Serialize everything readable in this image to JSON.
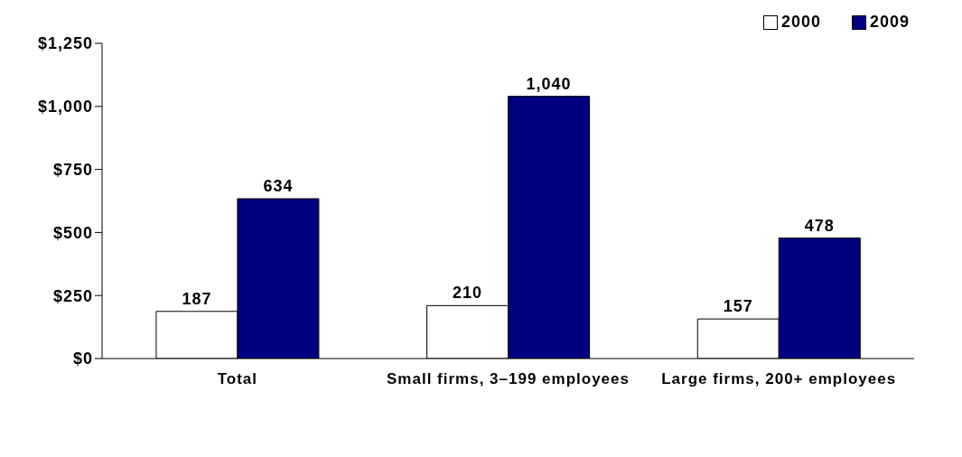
{
  "chart_data": {
    "type": "bar",
    "categories": [
      "Total",
      "Small firms, 3–199 employees",
      "Large firms, 200+ employees"
    ],
    "series": [
      {
        "name": "2000",
        "color": "#ffffff",
        "values": [
          187,
          210,
          157
        ],
        "value_labels": [
          "187",
          "210",
          "157"
        ]
      },
      {
        "name": "2009",
        "color": "#000080",
        "values": [
          634,
          1040,
          478
        ],
        "value_labels": [
          "634",
          "1,040",
          "478"
        ]
      }
    ],
    "ylim": [
      0,
      1250
    ],
    "yticks": [
      {
        "value": 0,
        "label": "$0"
      },
      {
        "value": 250,
        "label": "$250"
      },
      {
        "value": 500,
        "label": "$500"
      },
      {
        "value": 750,
        "label": "$750"
      },
      {
        "value": 1000,
        "label": "$1,000"
      },
      {
        "value": 1250,
        "label": "$1,250"
      }
    ],
    "grid": false,
    "legend": "top right"
  }
}
